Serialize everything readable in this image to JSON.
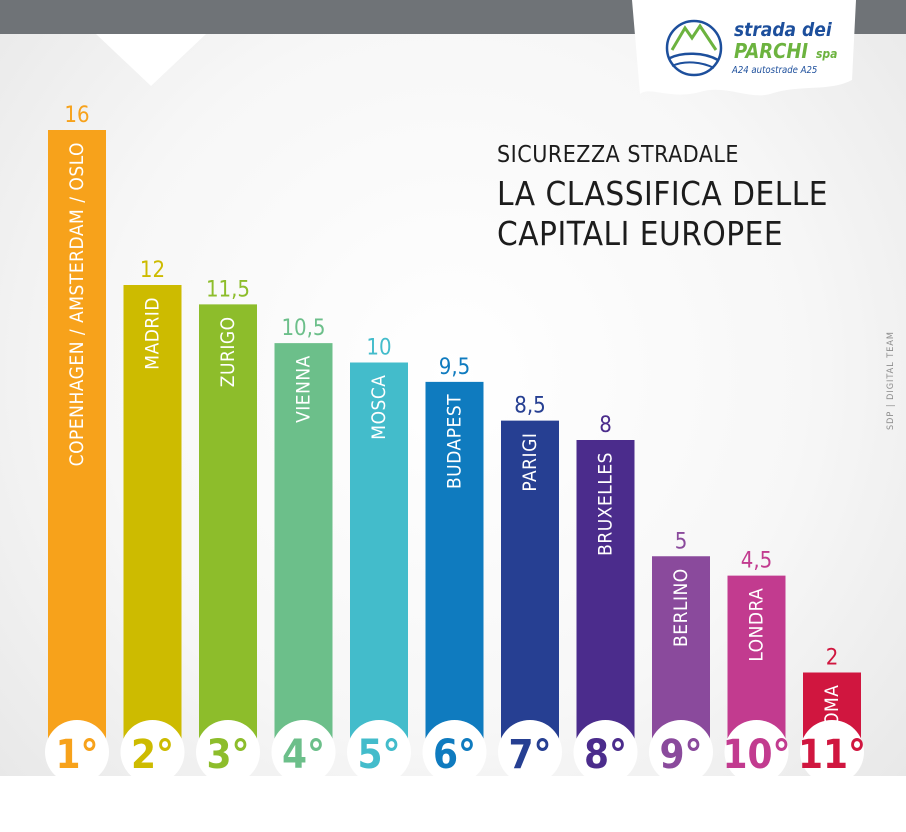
{
  "header": {
    "subtitle": "SICUREZZA STRADALE",
    "title_line1": "LA CLASSIFICA DELLE",
    "title_line2": "CAPITALI EUROPEE"
  },
  "logo": {
    "name_part1": "strada dei",
    "name_part2": "PARCHI",
    "name_part3": "spa",
    "tagline": "A24 autostrade A25",
    "colors": {
      "blue": "#1d4f9c",
      "green": "#6cb33f"
    }
  },
  "credit": "SDP | DIGITAL TEAM",
  "chart_data": {
    "type": "bar",
    "categories": [
      "COPENHAGEN / AMSTERDAM / OSLO",
      "MADRID",
      "ZURIGO",
      "VIENNA",
      "MOSCA",
      "BUDAPEST",
      "PARIGI",
      "BRUXELLES",
      "BERLINO",
      "LONDRA",
      "ROMA"
    ],
    "values": [
      16,
      12,
      11.5,
      10.5,
      10,
      9.5,
      8.5,
      8,
      5,
      4.5,
      2
    ],
    "value_labels": [
      "16",
      "12",
      "11,5",
      "10,5",
      "10",
      "9,5",
      "8,5",
      "8",
      "5",
      "4,5",
      "2"
    ],
    "ranks": [
      "1°",
      "2°",
      "3°",
      "4°",
      "5°",
      "6°",
      "7°",
      "8°",
      "9°",
      "10°",
      "11°"
    ],
    "colors": [
      "#f7a21b",
      "#cdbb00",
      "#8dbd2b",
      "#6cbf8a",
      "#43bccb",
      "#0f7bbf",
      "#263f92",
      "#4b2c8c",
      "#8a4a9c",
      "#c23b8f",
      "#d0163f"
    ],
    "ylim": [
      0,
      16
    ],
    "grid": false,
    "legend": "none"
  }
}
